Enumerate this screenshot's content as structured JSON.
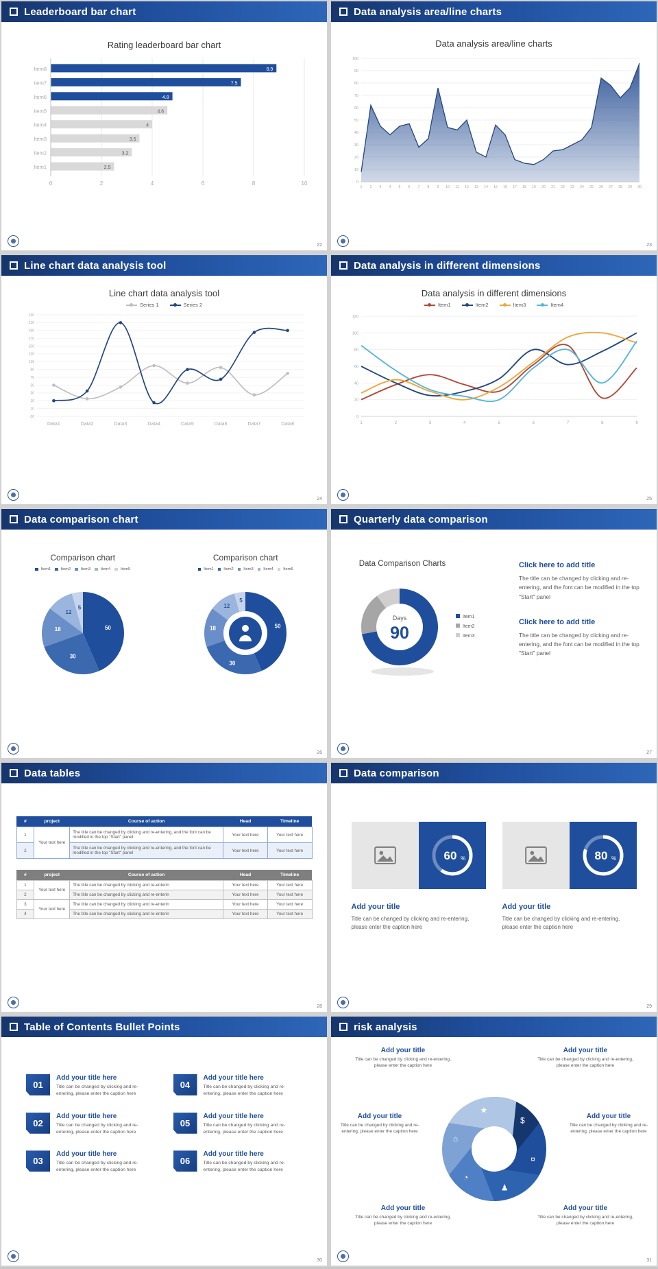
{
  "theme": {
    "accent": "#1F4E9C",
    "header_gradient": [
      "#16356C",
      "#1F4E9C",
      "#2E66B8"
    ],
    "gap_background": "#D2D2D2"
  },
  "slides": [
    {
      "header": "Leaderboard bar chart",
      "page_number": "22",
      "chart_title": "Rating leaderboard bar chart",
      "chart_data": {
        "type": "bar",
        "orientation": "horizontal",
        "categories": [
          "Item8",
          "Item7",
          "Item6",
          "Item5",
          "Item4",
          "Item3",
          "Item2",
          "Item1"
        ],
        "values": [
          8.9,
          7.5,
          4.8,
          4.6,
          4,
          3.5,
          3.2,
          2.5
        ],
        "value_labels": [
          "8.9",
          "7.5",
          "4.8",
          "4.6",
          "4",
          "3.5",
          "3.2",
          "2.5"
        ],
        "bar_colors": [
          "#1F4E9C",
          "#1F4E9C",
          "#1F4E9C",
          "#D9D9D9",
          "#D9D9D9",
          "#D9D9D9",
          "#D9D9D9",
          "#D9D9D9"
        ],
        "label_colors": [
          "#FFFFFF",
          "#FFFFFF",
          "#FFFFFF",
          "#595959",
          "#595959",
          "#595959",
          "#595959",
          "#595959"
        ],
        "xlim": [
          0,
          10
        ],
        "xticks": [
          "0",
          "2",
          "4",
          "6",
          "8",
          "10"
        ]
      }
    },
    {
      "header": "Data analysis area/line charts",
      "page_number": "23",
      "chart_title": "Data analysis area/line charts",
      "chart_data": {
        "type": "area",
        "x_labels": [
          "1",
          "2",
          "3",
          "4",
          "5",
          "6",
          "7",
          "8",
          "9",
          "10",
          "11",
          "12",
          "13",
          "14",
          "15",
          "16",
          "17",
          "18",
          "19",
          "20",
          "21",
          "22",
          "23",
          "24",
          "25",
          "26",
          "27",
          "28",
          "29",
          "30"
        ],
        "values": [
          8,
          62,
          45,
          38,
          45,
          47,
          28,
          35,
          76,
          44,
          42,
          50,
          24,
          20,
          46,
          38,
          18,
          15,
          14,
          18,
          25,
          26,
          30,
          34,
          44,
          84,
          78,
          68,
          76,
          96
        ],
        "ylim": [
          0,
          100
        ],
        "ytick_step": 10,
        "line_color": "#24477F",
        "fill_color": "#2F5597"
      }
    },
    {
      "header": "Line chart data analysis tool",
      "page_number": "24",
      "chart_title": "Line chart data analysis tool",
      "chart_data": {
        "type": "line",
        "categories": [
          "Data1",
          "Data2",
          "Data3",
          "Data4",
          "Data5",
          "Data6",
          "Data7",
          "Data8"
        ],
        "ylim": [
          -30,
          230
        ],
        "ytick_step": 20,
        "series": [
          {
            "name": "Series 1",
            "color": "#BFBFBF",
            "values": [
              50,
              15,
              45,
              100,
              55,
              95,
              25,
              80
            ]
          },
          {
            "name": "Series 2",
            "color": "#24477F",
            "values": [
              10,
              35,
              210,
              5,
              90,
              65,
              185,
              190
            ]
          }
        ]
      }
    },
    {
      "header": "Data analysis in different dimensions",
      "page_number": "25",
      "chart_title": "Data analysis in different dimensions",
      "chart_data": {
        "type": "line",
        "x_labels": [
          "1",
          "2",
          "3",
          "4",
          "5",
          "6",
          "7",
          "8",
          "9"
        ],
        "ylim": [
          0,
          120
        ],
        "ytick_step": 20,
        "series": [
          {
            "name": "Item1",
            "color": "#B04A3A",
            "values": [
              20,
              38,
              50,
              38,
              30,
              62,
              85,
              22,
              58
            ]
          },
          {
            "name": "Item2",
            "color": "#24477F",
            "values": [
              60,
              40,
              25,
              30,
              45,
              80,
              62,
              78,
              100
            ]
          },
          {
            "name": "Item3",
            "color": "#EFA73E",
            "values": [
              28,
              44,
              30,
              20,
              35,
              65,
              95,
              100,
              88
            ]
          },
          {
            "name": "Item4",
            "color": "#55B7D9",
            "values": [
              85,
              55,
              32,
              24,
              20,
              58,
              80,
              40,
              90
            ]
          }
        ]
      }
    },
    {
      "header": "Data comparison chart",
      "page_number": "26",
      "charts": [
        {
          "title": "Comparison chart",
          "type": "pie",
          "legend": [
            "Item1",
            "Item2",
            "Item3",
            "Item4",
            "Item5"
          ],
          "values": [
            50,
            30,
            18,
            12,
            5
          ],
          "labels": [
            "50",
            "30",
            "18",
            "12",
            "5"
          ],
          "colors": [
            "#1F4E9C",
            "#3B69B0",
            "#6A8FC8",
            "#9AB5DE",
            "#C6D5EC"
          ]
        },
        {
          "title": "Comparison chart",
          "type": "donut",
          "legend": [
            "Item1",
            "Item2",
            "Item3",
            "Item4",
            "Item5"
          ],
          "values": [
            50,
            30,
            18,
            12,
            5
          ],
          "labels": [
            "50",
            "30",
            "18",
            "12",
            "5"
          ],
          "colors": [
            "#1F4E9C",
            "#3B69B0",
            "#6A8FC8",
            "#9AB5DE",
            "#C6D5EC"
          ],
          "center_icon": "presenter-icon"
        }
      ]
    },
    {
      "header": "Quarterly data comparison",
      "page_number": "27",
      "chart_title": "Data Comparison Charts",
      "chart_data": {
        "type": "donut",
        "legend": [
          "Item1",
          "Item2",
          "Item3"
        ],
        "values": [
          72,
          18,
          10
        ],
        "colors": [
          "#1F4E9C",
          "#A6A6A6",
          "#D0CECE"
        ],
        "center_label": "Days",
        "center_value": "90"
      },
      "blocks": [
        {
          "title": "Click here to add title",
          "body": "The title can be changed by clicking and re-entering, and the font can be modified in the top \"Start\" panel"
        },
        {
          "title": "Click here to add title",
          "body": "The title can be changed by clicking and re-entering, and the font can be modified in the top \"Start\" panel"
        }
      ]
    },
    {
      "header": "Data tables",
      "page_number": "28",
      "tables": [
        {
          "style": "blue",
          "columns": [
            "#",
            "project",
            "Course of action",
            "Head",
            "Timeline"
          ],
          "rows": [
            {
              "num": "1",
              "action": "The title can be changed by clicking and re-entering, and the font can be modified in the top \"Start\" panel",
              "head": "Your text here",
              "timeline": "Your text here"
            },
            {
              "num": "2",
              "action": "The title can be changed by clicking and re-entering, and the font can be modified in the top \"Start\" panel",
              "head": "Your text here",
              "timeline": "Your text here"
            }
          ],
          "project_groups": [
            {
              "start": 0,
              "span": 2,
              "label": "Your text here"
            }
          ]
        },
        {
          "style": "gray",
          "columns": [
            "#",
            "project",
            "Course of action",
            "Head",
            "Timeline"
          ],
          "rows": [
            {
              "num": "1",
              "action": "The title can be changed by clicking and re-enterin",
              "head": "Your text here",
              "timeline": "Your text here"
            },
            {
              "num": "2",
              "action": "The title can be changed by clicking and re-enterin",
              "head": "Your text here",
              "timeline": "Your text here"
            },
            {
              "num": "3",
              "action": "The title can be changed by clicking and re-enterin",
              "head": "Your text here",
              "timeline": "Your text here"
            },
            {
              "num": "4",
              "action": "The title can be changed by clicking and re-enterin",
              "head": "Your text here",
              "timeline": "Your text here"
            }
          ],
          "project_groups": [
            {
              "start": 0,
              "span": 2,
              "label": "Your text here"
            },
            {
              "start": 2,
              "span": 2,
              "label": "Your text here"
            }
          ]
        }
      ]
    },
    {
      "header": "Data comparison",
      "page_number": "29",
      "cards": [
        {
          "percent": 60,
          "percent_label": "60",
          "percent_suffix": "%",
          "title": "Add your title",
          "caption": "Title can be changed by clicking and re-entering, please enter the caption here"
        },
        {
          "percent": 80,
          "percent_label": "80",
          "percent_suffix": "%",
          "title": "Add your title",
          "caption": "Title can be changed by clicking and re-entering, please enter the caption here"
        }
      ]
    },
    {
      "header": "Table of Contents Bullet Points",
      "page_number": "30",
      "items": [
        {
          "num": "01",
          "title": "Add your title here",
          "caption": "Title can be changed by clicking and re-entering, please enter the caption here"
        },
        {
          "num": "02",
          "title": "Add your title here",
          "caption": "Title can be changed by clicking and re-entering, please enter the caption here"
        },
        {
          "num": "03",
          "title": "Add your title here",
          "caption": "Title can be changed by clicking and re-entering, please enter the caption here"
        },
        {
          "num": "04",
          "title": "Add your title here",
          "caption": "Title can be changed by clicking and re-entering, please enter the caption here"
        },
        {
          "num": "05",
          "title": "Add your title here",
          "caption": "Title can be changed by clicking and re-entering, please enter the caption here"
        },
        {
          "num": "06",
          "title": "Add your title here",
          "caption": "Title can be changed by clicking and re-entering, please enter the caption here"
        }
      ]
    },
    {
      "header": "risk analysis",
      "page_number": "31",
      "diagram": {
        "type": "pinwheel",
        "colors": [
          "#16376E",
          "#1F4E9C",
          "#2E63B0",
          "#4F7FC4",
          "#7EA2D4",
          "#AFC6E4"
        ],
        "icons": [
          {
            "name": "money-bag-icon",
            "glyph": "$"
          },
          {
            "name": "coins-icon",
            "glyph": "¤"
          },
          {
            "name": "team-icon",
            "glyph": "♟"
          },
          {
            "name": "pie-chart-icon",
            "glyph": "◔"
          },
          {
            "name": "building-icon",
            "glyph": "⌂"
          },
          {
            "name": "chart-icon",
            "glyph": "★"
          }
        ]
      },
      "blocks": [
        {
          "title": "Add your title",
          "caption": "Title can be changed by clicking and re-entering, please enter the caption here"
        },
        {
          "title": "Add your title",
          "caption": "Title can be changed by clicking and re-entering, please enter the caption here"
        },
        {
          "title": "Add your title",
          "caption": "Title can be changed by clicking and re-entering, please enter the caption here"
        },
        {
          "title": "Add your title",
          "caption": "Title can be changed by clicking and re-entering, please enter the caption here"
        },
        {
          "title": "Add your title",
          "caption": "Title can be changed by clicking and re-entering, please enter the caption here"
        },
        {
          "title": "Add your title",
          "caption": "Title can be changed by clicking and re-entering, please enter the caption here"
        }
      ]
    }
  ]
}
